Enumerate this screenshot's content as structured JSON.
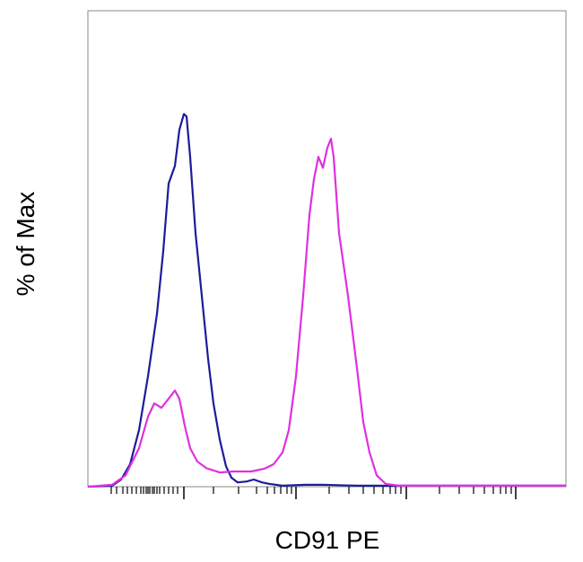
{
  "chart_data": {
    "type": "line",
    "x_label": "CD91 PE",
    "y_label": "% of Max",
    "xlim": [
      0,
      533
    ],
    "ylim": [
      0,
      100
    ],
    "xticks": [
      26,
      32,
      39,
      44,
      49,
      54,
      59,
      62,
      65,
      67,
      69,
      72,
      74,
      77,
      80,
      85,
      90,
      95,
      100,
      140,
      168,
      188,
      200,
      208,
      215,
      222,
      227,
      269,
      291,
      307,
      319,
      329,
      337,
      343,
      349,
      392,
      414,
      430,
      442,
      452,
      460,
      466,
      472
    ],
    "xticks_major": [
      107,
      232,
      355,
      477
    ],
    "series": [
      {
        "color": "#1c1c9a",
        "x": [
          0,
          27,
          37,
          47,
          57,
          67,
          77,
          84,
          90,
          97,
          102,
          107,
          110,
          114,
          120,
          127,
          134,
          140,
          147,
          154,
          160,
          167,
          177,
          185,
          194,
          202,
          217,
          242,
          262,
          302,
          533
        ],
        "values": [
          0,
          0.2,
          1.5,
          4.7,
          11.9,
          23.2,
          36.3,
          49.5,
          63.7,
          67.4,
          75.0,
          78.3,
          77.8,
          69.3,
          53.3,
          40.1,
          26.9,
          17.5,
          9.9,
          4.3,
          1.9,
          0.9,
          1.1,
          1.5,
          0.9,
          0.6,
          0.2,
          0.4,
          0.4,
          0.2,
          0.2
        ]
      },
      {
        "color": "#e030e0",
        "x": [
          0,
          27,
          42,
          57,
          67,
          74,
          82,
          90,
          97,
          102,
          108,
          114,
          122,
          132,
          147,
          162,
          182,
          197,
          207,
          217,
          224,
          232,
          240,
          247,
          252,
          257,
          262,
          267,
          271,
          274,
          280,
          290,
          300,
          307,
          314,
          322,
          332,
          347,
          533
        ],
        "values": [
          0,
          0.4,
          2.4,
          8.1,
          14.7,
          17.5,
          16.6,
          18.5,
          20.2,
          18.5,
          12.8,
          8.1,
          5.3,
          3.9,
          3.0,
          3.2,
          3.2,
          3.8,
          4.7,
          7.2,
          11.9,
          23.2,
          40.1,
          57.1,
          64.6,
          69.3,
          67.0,
          71.2,
          73.1,
          69.3,
          53.3,
          40.1,
          24.9,
          13.6,
          7.2,
          2.4,
          0.6,
          0.2,
          0.2
        ]
      }
    ]
  }
}
